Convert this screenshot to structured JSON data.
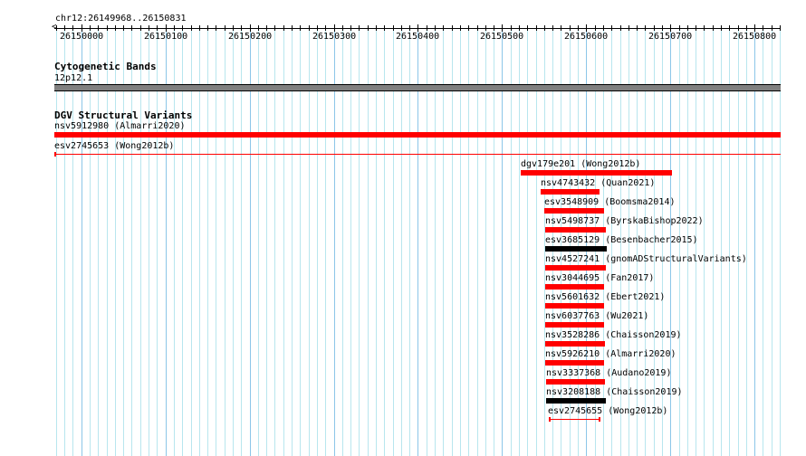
{
  "ruler": {
    "label": "chr12:26149968..26150831",
    "start": 26149968,
    "end": 26150831,
    "ticks": [
      "26150000",
      "26150100",
      "26150200",
      "26150300",
      "26150400",
      "26150500",
      "26150600",
      "26150700",
      "26150800"
    ]
  },
  "cyto": {
    "title": "Cytogenetic Bands",
    "band": "12p12.1",
    "color": "#808080"
  },
  "dgv": {
    "title": "DGV Structural Variants",
    "features": [
      {
        "label": "nsv5912980 (Almarri2020)",
        "start": 26149968,
        "end": 26150831,
        "style": "thick",
        "color": "#ff0000"
      },
      {
        "label": "esv2745653 (Wong2012b)",
        "start": 26149968,
        "end": 26150831,
        "style": "thin",
        "color": "#ff0000"
      },
      {
        "label": "dgv179e201 (Wong2012b)",
        "start": 26150522,
        "end": 26150702,
        "style": "thick",
        "color": "#ff0000"
      },
      {
        "label": "nsv4743432 (Quan2021)",
        "start": 26150546,
        "end": 26150616,
        "style": "thick",
        "color": "#ff0000"
      },
      {
        "label": "esv3548909 (Boomsma2014)",
        "start": 26150550,
        "end": 26150621,
        "style": "thick",
        "color": "#ff0000"
      },
      {
        "label": "nsv5498737 (ByrskaBishop2022)",
        "start": 26150551,
        "end": 26150623,
        "style": "thick",
        "color": "#ff0000"
      },
      {
        "label": "esv3685129 (Besenbacher2015)",
        "start": 26150551,
        "end": 26150624,
        "style": "thick",
        "color": "#000000"
      },
      {
        "label": "nsv4527241 (gnomADStructuralVariants)",
        "start": 26150551,
        "end": 26150623,
        "style": "thick",
        "color": "#ff0000"
      },
      {
        "label": "nsv3044695 (Fan2017)",
        "start": 26150551,
        "end": 26150621,
        "style": "thick",
        "color": "#ff0000"
      },
      {
        "label": "nsv5601632 (Ebert2021)",
        "start": 26150551,
        "end": 26150621,
        "style": "thick",
        "color": "#ff0000"
      },
      {
        "label": "nsv6037763 (Wu2021)",
        "start": 26150551,
        "end": 26150621,
        "style": "thick",
        "color": "#ff0000"
      },
      {
        "label": "nsv3528286 (Chaisson2019)",
        "start": 26150551,
        "end": 26150622,
        "style": "thick",
        "color": "#ff0000"
      },
      {
        "label": "nsv5926210 (Almarri2020)",
        "start": 26150551,
        "end": 26150621,
        "style": "thick",
        "color": "#ff0000"
      },
      {
        "label": "nsv3337368 (Audano2019)",
        "start": 26150552,
        "end": 26150622,
        "style": "thick",
        "color": "#ff0000"
      },
      {
        "label": "nsv3208188 (Chaisson2019)",
        "start": 26150552,
        "end": 26150623,
        "style": "thick",
        "color": "#000000"
      },
      {
        "label": "esv2745655 (Wong2012b)",
        "start": 26150556,
        "end": 26150616,
        "style": "capped",
        "color": "#ff0000"
      }
    ]
  }
}
